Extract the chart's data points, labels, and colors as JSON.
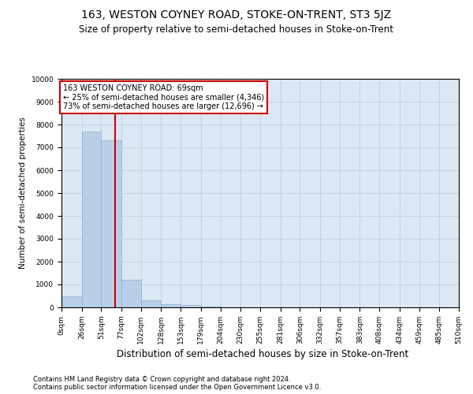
{
  "title": "163, WESTON COYNEY ROAD, STOKE-ON-TRENT, ST3 5JZ",
  "subtitle": "Size of property relative to semi-detached houses in Stoke-on-Trent",
  "xlabel": "Distribution of semi-detached houses by size in Stoke-on-Trent",
  "ylabel": "Number of semi-detached properties",
  "property_size": 69,
  "annotation_line1": "163 WESTON COYNEY ROAD: 69sqm",
  "annotation_line2": "← 25% of semi-detached houses are smaller (4,346)",
  "annotation_line3": "73% of semi-detached houses are larger (12,696) →",
  "footnote1": "Contains HM Land Registry data © Crown copyright and database right 2024.",
  "footnote2": "Contains public sector information licensed under the Open Government Licence v3.0.",
  "bar_edges": [
    0,
    26,
    51,
    77,
    102,
    128,
    153,
    179,
    204,
    230,
    255,
    281,
    306,
    332,
    357,
    383,
    408,
    434,
    459,
    485,
    510
  ],
  "bar_heights": [
    500,
    7700,
    7300,
    1200,
    300,
    150,
    100,
    50,
    0,
    0,
    0,
    0,
    0,
    0,
    0,
    0,
    0,
    0,
    0,
    0
  ],
  "bar_color": "#b8cfe8",
  "bar_edgecolor": "#8ab0d0",
  "vline_color": "#cc0000",
  "vline_x": 69,
  "ylim": [
    0,
    10000
  ],
  "yticks": [
    0,
    1000,
    2000,
    3000,
    4000,
    5000,
    6000,
    7000,
    8000,
    9000,
    10000
  ],
  "grid_color": "#c0d0e0",
  "bg_color": "#dce8f4",
  "title_fontsize": 10,
  "subtitle_fontsize": 8.5,
  "annotation_box_color": "#cc0000",
  "tick_labels": [
    "0sqm",
    "26sqm",
    "51sqm",
    "77sqm",
    "102sqm",
    "128sqm",
    "153sqm",
    "179sqm",
    "204sqm",
    "230sqm",
    "255sqm",
    "281sqm",
    "306sqm",
    "332sqm",
    "357sqm",
    "383sqm",
    "408sqm",
    "434sqm",
    "459sqm",
    "485sqm",
    "510sqm"
  ],
  "footnote_fontsize": 6.0,
  "ylabel_fontsize": 7.5,
  "xlabel_fontsize": 8.5,
  "tick_fontsize": 6.5,
  "annot_fontsize": 7.0
}
